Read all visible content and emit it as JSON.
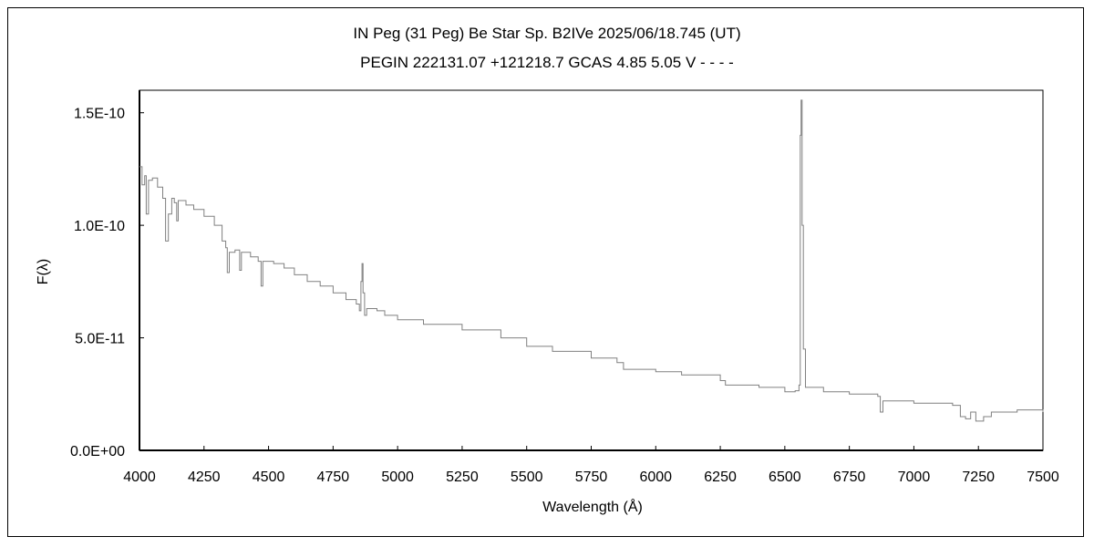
{
  "chart_data": {
    "type": "line",
    "title": "IN Peg (31 Peg)    Be Star    Sp. B2IVe    2025/06/18.745 (UT)",
    "subtitle": "PEGIN 222131.07 +121218.7 GCAS 4.85 5.05 V - - - -",
    "xlabel": "Wavelength (Å)",
    "ylabel": "F(λ)",
    "xlim": [
      4000,
      7500
    ],
    "ylim": [
      0,
      1.6e-10
    ],
    "xticks": [
      4000,
      4250,
      4500,
      4750,
      5000,
      5250,
      5500,
      5750,
      6000,
      6250,
      6500,
      6750,
      7000,
      7250,
      7500
    ],
    "yticks": [
      0,
      5e-11,
      1e-10,
      1.5e-10
    ],
    "ytick_labels": [
      "0.0E+00",
      "5.0E-11",
      "1.0E-10",
      "1.5E-10"
    ],
    "grid": false,
    "line_color": "#808080",
    "series": [
      {
        "x": [
          4000,
          4010,
          4020,
          4026,
          4035,
          4050,
          4070,
          4090,
          4101,
          4112,
          4125,
          4135,
          4144,
          4150,
          4180,
          4210,
          4250,
          4290,
          4320,
          4334,
          4340,
          4348,
          4370,
          4388,
          4395,
          4430,
          4460,
          4471,
          4478,
          4520,
          4560,
          4600,
          4650,
          4700,
          4750,
          4800,
          4840,
          4852,
          4858,
          4862,
          4866,
          4872,
          4880,
          4920,
          4950,
          5000,
          5100,
          5250,
          5400,
          5500,
          5600,
          5750,
          5850,
          5875,
          5890,
          6000,
          6100,
          6250,
          6270,
          6400,
          6500,
          6540,
          6555,
          6560,
          6563,
          6567,
          6572,
          6580,
          6650,
          6750,
          6860,
          6870,
          6880,
          7000,
          7150,
          7180,
          7200,
          7220,
          7240,
          7270,
          7300,
          7400,
          7500
        ],
        "y": [
          1.26e-10,
          1.18e-10,
          1.22e-10,
          1.05e-10,
          1.2e-10,
          1.21e-10,
          1.17e-10,
          1.12e-10,
          9.3e-11,
          1.05e-10,
          1.12e-10,
          1.1e-10,
          1.02e-10,
          1.11e-10,
          1.09e-10,
          1.07e-10,
          1.04e-10,
          1e-10,
          9.3e-11,
          9e-11,
          7.9e-11,
          8.8e-11,
          8.9e-11,
          8e-11,
          8.8e-11,
          8.6e-11,
          8.4e-11,
          7.3e-11,
          8.4e-11,
          8.3e-11,
          8.1e-11,
          7.8e-11,
          7.5e-11,
          7.3e-11,
          7e-11,
          6.7e-11,
          6.5e-11,
          6.2e-11,
          7.5e-11,
          8.3e-11,
          7e-11,
          6e-11,
          6.3e-11,
          6.2e-11,
          6e-11,
          5.8e-11,
          5.6e-11,
          5.35e-11,
          5e-11,
          4.62e-11,
          4.4e-11,
          4.1e-11,
          3.9e-11,
          3.6e-11,
          3.6e-11,
          3.49e-11,
          3.35e-11,
          3.1e-11,
          2.9e-11,
          2.8e-11,
          2.6e-11,
          2.65e-11,
          2.9e-11,
          1.4e-10,
          1.556e-10,
          1e-10,
          4.5e-11,
          2.8e-11,
          2.6e-11,
          2.5e-11,
          2.4e-11,
          1.7e-11,
          2.2e-11,
          2.1e-11,
          2e-11,
          1.5e-11,
          1.4e-11,
          1.7e-11,
          1.3e-11,
          1.5e-11,
          1.7e-11,
          1.8e-11,
          1.7e-11
        ]
      }
    ]
  }
}
